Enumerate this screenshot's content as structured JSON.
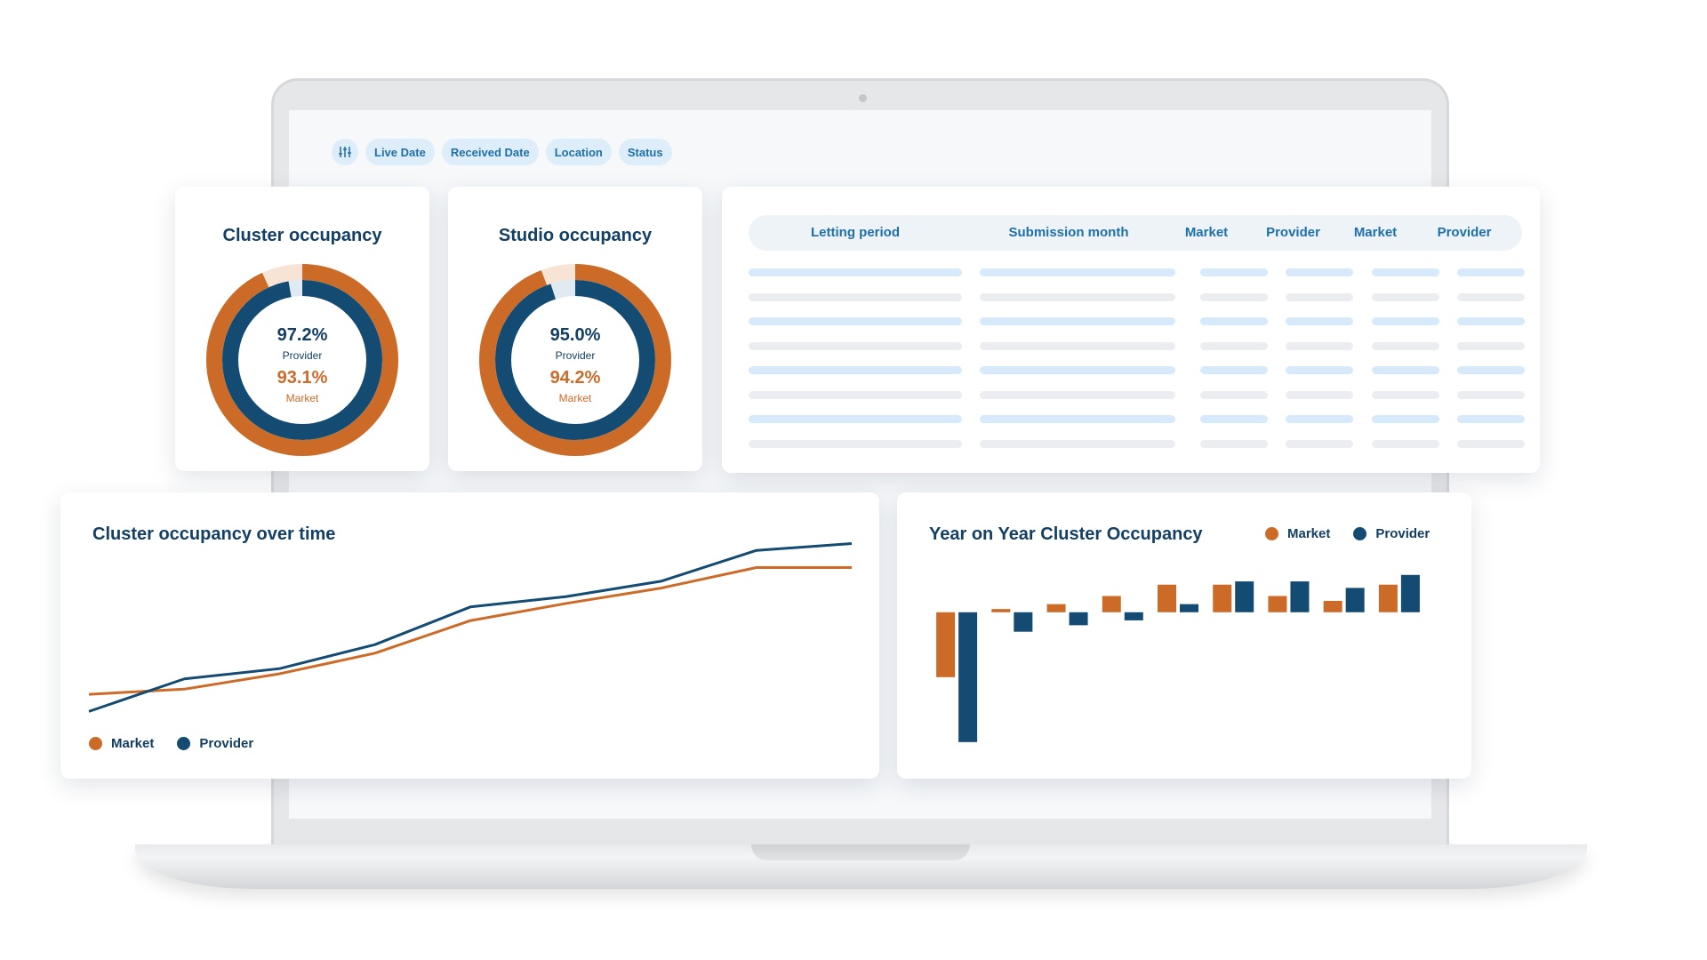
{
  "colors": {
    "market": "#cc6b28",
    "provider": "#134b73",
    "accent": "#1f6fa8"
  },
  "filters": {
    "icon": "sliders-icon",
    "chips": [
      "Live Date",
      "Received Date",
      "Location",
      "Status"
    ]
  },
  "cluster_occupancy": {
    "title": "Cluster occupancy",
    "provider_value": "97.2%",
    "provider_label": "Provider",
    "market_value": "93.1%",
    "market_label": "Market"
  },
  "studio_occupancy": {
    "title": "Studio occupancy",
    "provider_value": "95.0%",
    "provider_label": "Provider",
    "market_value": "94.2%",
    "market_label": "Market"
  },
  "table": {
    "headers": [
      "Letting period",
      "Submission month",
      "Market",
      "Provider",
      "Market",
      "Provider"
    ],
    "placeholder_rows": 8
  },
  "line_chart": {
    "title": "Cluster occupancy over time",
    "legend": [
      "Market",
      "Provider"
    ]
  },
  "bar_chart": {
    "title": "Year on Year Cluster Occupancy",
    "legend": [
      "Market",
      "Provider"
    ]
  },
  "chart_data": [
    {
      "type": "donut",
      "title": "Cluster occupancy",
      "series": [
        {
          "name": "Provider",
          "value": 97.2
        },
        {
          "name": "Market",
          "value": 93.1
        }
      ]
    },
    {
      "type": "donut",
      "title": "Studio occupancy",
      "series": [
        {
          "name": "Provider",
          "value": 95.0
        },
        {
          "name": "Market",
          "value": 94.2
        }
      ]
    },
    {
      "type": "line",
      "title": "Cluster occupancy over time",
      "x": [
        0,
        1,
        2,
        3,
        4,
        5,
        6,
        7,
        8
      ],
      "series": [
        {
          "name": "Market",
          "values": [
            5,
            8,
            17,
            29,
            48,
            58,
            67,
            79,
            79
          ]
        },
        {
          "name": "Provider",
          "values": [
            -5,
            14,
            20,
            34,
            56,
            62,
            71,
            89,
            93
          ]
        }
      ],
      "ylim": [
        -10,
        100
      ],
      "grid": false,
      "legend_position": "bottom-left"
    },
    {
      "type": "bar",
      "title": "Year on Year Cluster Occupancy",
      "categories": [
        "1",
        "2",
        "3",
        "4",
        "5",
        "6",
        "7",
        "8",
        "9"
      ],
      "series": [
        {
          "name": "Market",
          "values": [
            -4.0,
            0.2,
            0.5,
            1.0,
            1.7,
            1.7,
            1.0,
            0.7,
            1.7
          ]
        },
        {
          "name": "Provider",
          "values": [
            -8.0,
            -1.2,
            -0.8,
            -0.5,
            0.5,
            1.9,
            1.9,
            1.5,
            2.3
          ]
        }
      ],
      "ylim": [
        -8.5,
        3
      ],
      "grid": false,
      "legend_position": "top-right"
    }
  ]
}
